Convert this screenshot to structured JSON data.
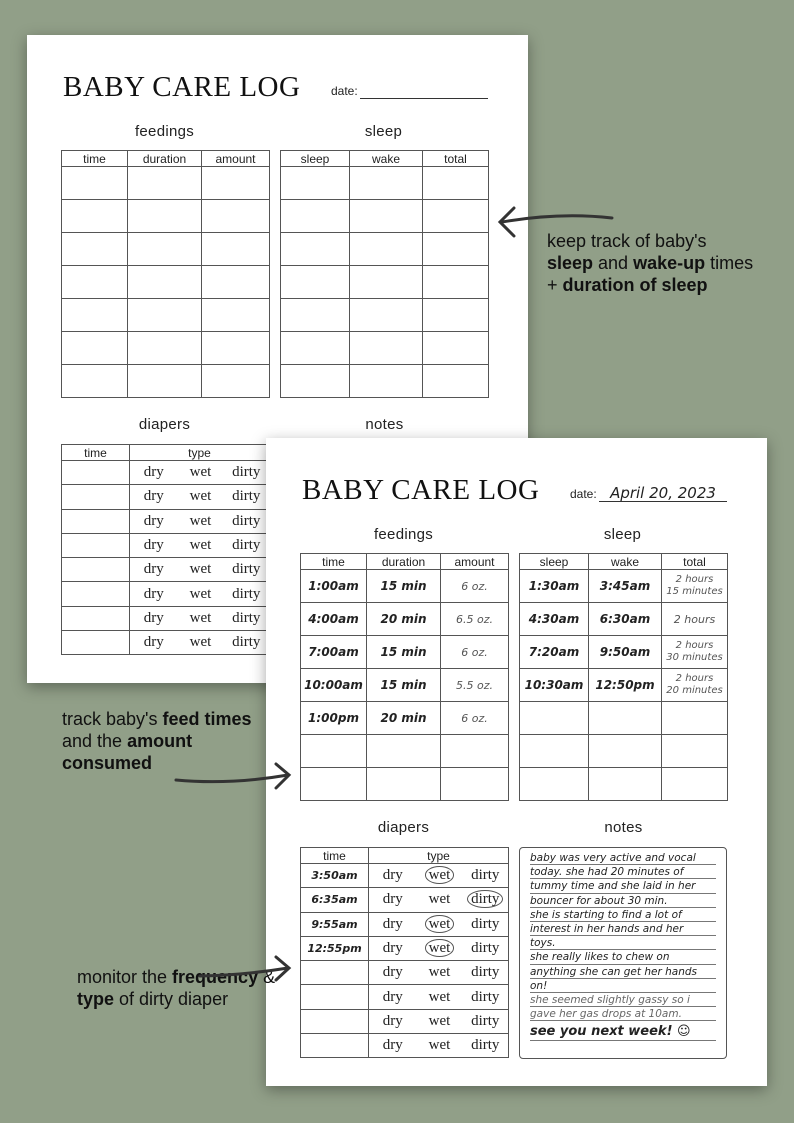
{
  "colors": {
    "background": "#919f88",
    "page": "#ffffff",
    "ink": "#222222"
  },
  "pages": [
    {
      "id": "back",
      "title": "BABY CARE LOG",
      "date_label": "date:",
      "date_value": "",
      "feedings": {
        "label": "feedings",
        "headers": [
          "time",
          "duration",
          "amount"
        ],
        "rows": [
          [
            "",
            "",
            ""
          ],
          [
            "",
            "",
            ""
          ],
          [
            "",
            "",
            ""
          ],
          [
            "",
            "",
            ""
          ],
          [
            "",
            "",
            ""
          ],
          [
            "",
            "",
            ""
          ],
          [
            "",
            "",
            ""
          ]
        ]
      },
      "sleep": {
        "label": "sleep",
        "headers": [
          "sleep",
          "wake",
          "total"
        ],
        "rows": [
          [
            "",
            "",
            ""
          ],
          [
            "",
            "",
            ""
          ],
          [
            "",
            "",
            ""
          ],
          [
            "",
            "",
            ""
          ],
          [
            "",
            "",
            ""
          ],
          [
            "",
            "",
            ""
          ],
          [
            "",
            "",
            ""
          ]
        ]
      },
      "diapers": {
        "label": "diapers",
        "headers": [
          "time",
          "type"
        ],
        "options": [
          "dry",
          "wet",
          "dirty"
        ],
        "rows": [
          {
            "time": "",
            "circled": ""
          },
          {
            "time": "",
            "circled": ""
          },
          {
            "time": "",
            "circled": ""
          },
          {
            "time": "",
            "circled": ""
          },
          {
            "time": "",
            "circled": ""
          },
          {
            "time": "",
            "circled": ""
          },
          {
            "time": "",
            "circled": ""
          },
          {
            "time": "",
            "circled": ""
          }
        ]
      },
      "notes": {
        "label": "notes",
        "lines": []
      }
    },
    {
      "id": "front",
      "title": "BABY CARE LOG",
      "date_label": "date:",
      "date_value": "April 20, 2023",
      "feedings": {
        "label": "feedings",
        "headers": [
          "time",
          "duration",
          "amount"
        ],
        "rows": [
          [
            "1:00am",
            "15 min",
            "6 oz."
          ],
          [
            "4:00am",
            "20 min",
            "6.5 oz."
          ],
          [
            "7:00am",
            "15 min",
            "6 oz."
          ],
          [
            "10:00am",
            "15 min",
            "5.5 oz."
          ],
          [
            "1:00pm",
            "20 min",
            "6 oz."
          ],
          [
            "",
            "",
            ""
          ],
          [
            "",
            "",
            ""
          ]
        ]
      },
      "sleep": {
        "label": "sleep",
        "headers": [
          "sleep",
          "wake",
          "total"
        ],
        "rows": [
          [
            "1:30am",
            "3:45am",
            "2 hours\n15 minutes"
          ],
          [
            "4:30am",
            "6:30am",
            "2 hours"
          ],
          [
            "7:20am",
            "9:50am",
            "2 hours\n30 minutes"
          ],
          [
            "10:30am",
            "12:50pm",
            "2 hours\n20 minutes"
          ],
          [
            "",
            "",
            ""
          ],
          [
            "",
            "",
            ""
          ],
          [
            "",
            "",
            ""
          ]
        ]
      },
      "diapers": {
        "label": "diapers",
        "headers": [
          "time",
          "type"
        ],
        "options": [
          "dry",
          "wet",
          "dirty"
        ],
        "rows": [
          {
            "time": "3:50am",
            "circled": "wet"
          },
          {
            "time": "6:35am",
            "circled": "dirty"
          },
          {
            "time": "9:55am",
            "circled": "wet"
          },
          {
            "time": "12:55pm",
            "circled": "wet"
          },
          {
            "time": "",
            "circled": ""
          },
          {
            "time": "",
            "circled": ""
          },
          {
            "time": "",
            "circled": ""
          },
          {
            "time": "",
            "circled": ""
          }
        ]
      },
      "notes": {
        "label": "notes",
        "lines": [
          "baby was very active and vocal",
          "today. she had 20 minutes of",
          "tummy time and she laid in her",
          "bouncer for about 30 min.",
          "she is starting to find a lot of",
          "interest in her hands and her",
          "toys.",
          "she really likes to chew on",
          "anything she can get her hands",
          "on!",
          "she seemed slightly gassy so i",
          "gave her gas drops at 10am.",
          "see you next week! ☺"
        ]
      }
    }
  ],
  "callouts": [
    {
      "parts": [
        [
          "keep track of baby's ",
          false
        ],
        [
          "sleep",
          true
        ],
        [
          " and ",
          false
        ],
        [
          "wake-up",
          true
        ],
        [
          " times + ",
          false
        ],
        [
          "duration of sleep",
          true
        ]
      ]
    },
    {
      "parts": [
        [
          "track baby's ",
          false
        ],
        [
          "feed times",
          true
        ],
        [
          " and the ",
          false
        ],
        [
          "amount consumed",
          true
        ]
      ]
    },
    {
      "parts": [
        [
          "monitor the ",
          false
        ],
        [
          "frequency",
          true
        ],
        [
          " & ",
          false
        ],
        [
          "type",
          true
        ],
        [
          " of dirty diaper",
          false
        ]
      ]
    }
  ]
}
